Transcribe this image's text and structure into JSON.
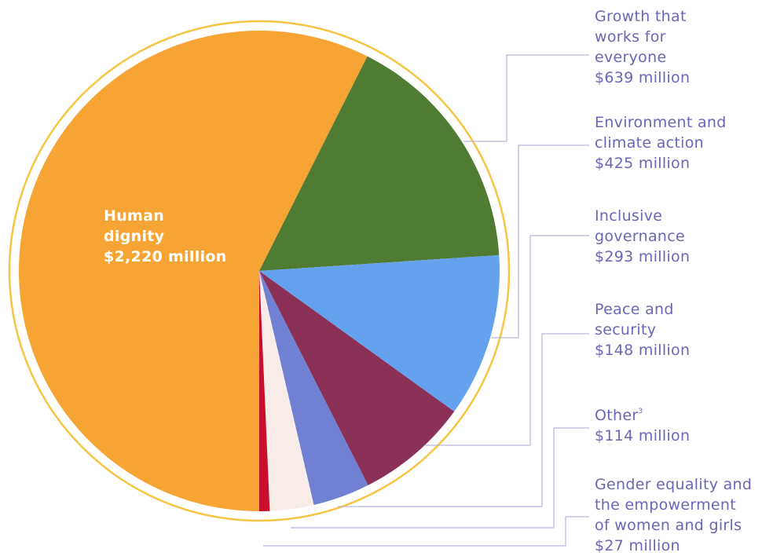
{
  "chart_data": {
    "type": "pie",
    "categories": [
      "Human\ndignity",
      "Growth that\nworks for\neveryone",
      "Environment and\nclimate action",
      "Inclusive\ngovernance",
      "Peace and\nsecurity",
      "Other",
      "Gender equality and\nthe empowerment\nof women and girls"
    ],
    "values": [
      2220,
      639,
      425,
      293,
      148,
      114,
      27
    ],
    "value_labels": [
      "$2,220 million",
      "$639 million",
      "$425 million",
      "$293 million",
      "$148 million",
      "$114 million",
      "$27 million"
    ],
    "colors": [
      "#f6a535",
      "#4f7b33",
      "#65a2ee",
      "#8b3158",
      "#7080d3",
      "#f8ece8",
      "#c8102e"
    ],
    "footnote": "3"
  }
}
